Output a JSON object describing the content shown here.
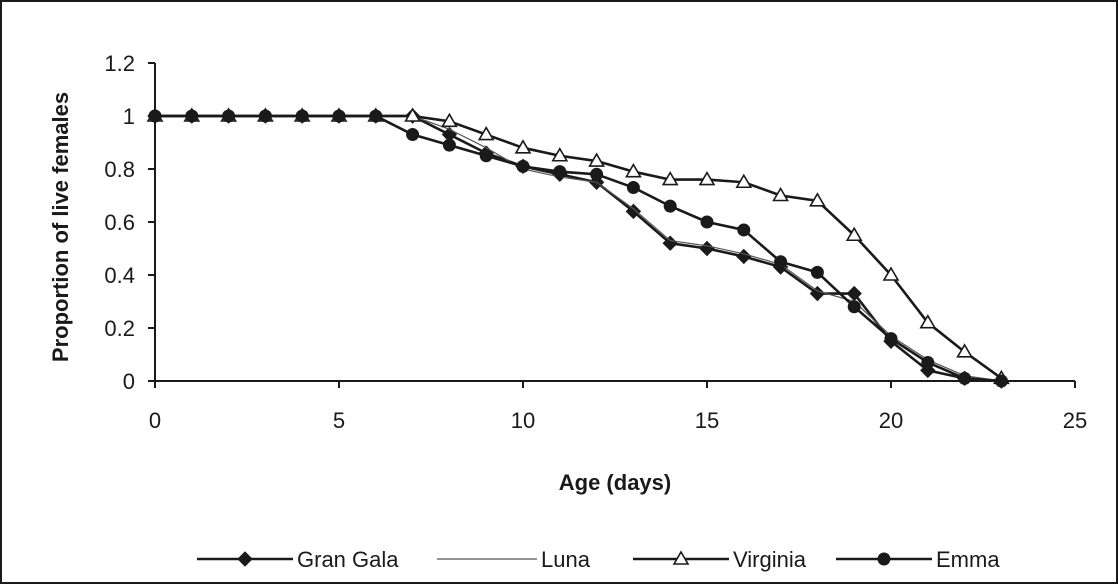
{
  "chart_data": {
    "type": "line",
    "xlabel": "Age (days)",
    "ylabel": "Proportion of live females",
    "xlim": [
      0,
      25
    ],
    "ylim": [
      0,
      1.2
    ],
    "xticks": [
      "0",
      "5",
      "10",
      "15",
      "20",
      "25"
    ],
    "yticks": [
      "0",
      "0.2",
      "0.4",
      "0.6",
      "0.8",
      "1",
      "1.2"
    ],
    "grid": false,
    "legend_position": "bottom",
    "x": [
      0,
      1,
      2,
      3,
      4,
      5,
      6,
      7,
      8,
      9,
      10,
      11,
      12,
      13,
      14,
      15,
      16,
      17,
      18,
      19,
      20,
      21,
      22,
      23
    ],
    "series": [
      {
        "name": "Gran Gala",
        "marker": "diamond",
        "color": "#1a1a1a",
        "values": [
          1,
          1,
          1,
          1,
          1,
          1,
          1,
          1,
          0.93,
          0.86,
          0.81,
          0.78,
          0.75,
          0.64,
          0.52,
          0.5,
          0.47,
          0.43,
          0.33,
          0.33,
          0.15,
          0.04,
          0.01,
          0
        ]
      },
      {
        "name": "Luna",
        "marker": "none",
        "color": "#555555",
        "values": [
          1,
          1,
          1,
          1,
          1,
          1,
          1,
          1,
          0.95,
          0.88,
          0.8,
          0.77,
          0.75,
          0.65,
          0.53,
          0.51,
          0.48,
          0.44,
          0.34,
          0.3,
          0.17,
          0.08,
          0.02,
          0
        ]
      },
      {
        "name": "Virginia",
        "marker": "triangle",
        "color": "#1a1a1a",
        "values": [
          1,
          1,
          1,
          1,
          1,
          1,
          1,
          1,
          0.98,
          0.93,
          0.88,
          0.85,
          0.83,
          0.79,
          0.76,
          0.76,
          0.75,
          0.7,
          0.68,
          0.55,
          0.4,
          0.22,
          0.11,
          0.01
        ]
      },
      {
        "name": "Emma",
        "marker": "circle",
        "color": "#1a1a1a",
        "values": [
          1,
          1,
          1,
          1,
          1,
          1,
          1,
          0.93,
          0.89,
          0.85,
          0.81,
          0.79,
          0.78,
          0.73,
          0.66,
          0.6,
          0.57,
          0.45,
          0.41,
          0.28,
          0.16,
          0.07,
          0.01,
          0
        ]
      }
    ]
  }
}
